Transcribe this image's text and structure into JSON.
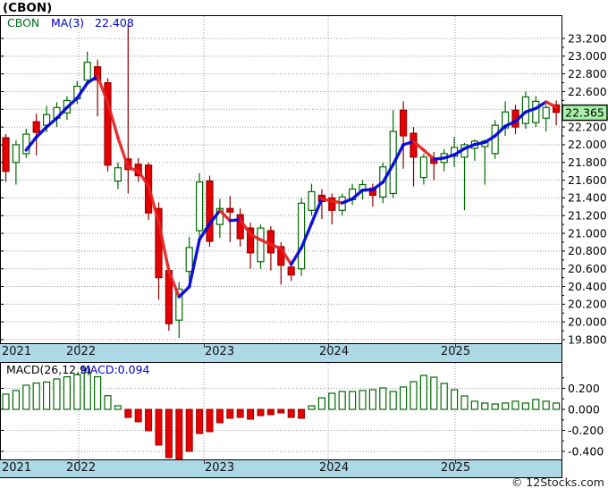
{
  "title": "(CBON)",
  "copyright": "© 12Stocks.com",
  "colors": {
    "up_outline": "#006A00",
    "down_fill": "#E60000",
    "down_edge": "#8B0000",
    "ma_up": "#0000DC",
    "ma_down": "#E62222",
    "grid": "#999999",
    "band_bg": "#ADD8E6",
    "marker_bg": "#A8F0A8",
    "legend_symbol": "#007020",
    "legend_value": "#0000C8"
  },
  "chart_data": [
    {
      "type": "candlestick",
      "title": "(CBON)",
      "legend": {
        "symbol": "CBON",
        "ma_label": "MA(3)",
        "ma_value": "22.408"
      },
      "last_price": 22.365,
      "last_price_label": "22.365",
      "y_axis": {
        "min": 19.8,
        "max": 23.2,
        "tick_step": 0.2,
        "labels": [
          "23.200",
          "23.000",
          "22.800",
          "22.600",
          "22.400",
          "22.200",
          "22.000",
          "21.800",
          "21.600",
          "21.400",
          "21.200",
          "21.000",
          "20.800",
          "20.600",
          "20.400",
          "20.200",
          "20.000",
          "19.800"
        ]
      },
      "x_axis": {
        "year_labels": [
          "2021",
          "2022",
          "2023",
          "2024",
          "2025"
        ]
      },
      "layout": {
        "year_label_x": [
          2,
          74,
          229,
          357,
          493
        ],
        "year_grid_x": [
          88,
          228,
          367,
          509
        ],
        "grid_on": true,
        "legend_position": "top-left"
      },
      "ohlc": [
        [
          22.08,
          22.12,
          21.58,
          21.7
        ],
        [
          21.8,
          22.05,
          21.55,
          22.0
        ],
        [
          21.9,
          22.18,
          21.85,
          22.12
        ],
        [
          22.26,
          22.35,
          21.88,
          22.14
        ],
        [
          22.22,
          22.44,
          22.14,
          22.34
        ],
        [
          22.3,
          22.48,
          22.2,
          22.42
        ],
        [
          22.36,
          22.55,
          22.28,
          22.5
        ],
        [
          22.52,
          22.72,
          22.46,
          22.66
        ],
        [
          22.73,
          23.05,
          22.68,
          22.93
        ],
        [
          22.88,
          22.96,
          22.32,
          22.73
        ],
        [
          22.7,
          22.75,
          21.7,
          21.77
        ],
        [
          21.59,
          21.8,
          21.5,
          21.74
        ],
        [
          21.84,
          23.35,
          21.45,
          21.72
        ],
        [
          21.78,
          21.85,
          21.58,
          21.65
        ],
        [
          21.77,
          21.8,
          21.15,
          21.23
        ],
        [
          21.28,
          21.35,
          20.25,
          20.5
        ],
        [
          20.58,
          20.65,
          19.9,
          19.98
        ],
        [
          20.02,
          20.45,
          19.82,
          20.37
        ],
        [
          20.57,
          20.96,
          20.45,
          20.84
        ],
        [
          21.03,
          21.68,
          20.95,
          21.58
        ],
        [
          21.59,
          21.65,
          20.85,
          20.91
        ],
        [
          21.1,
          21.39,
          20.95,
          21.28
        ],
        [
          21.28,
          21.42,
          20.9,
          21.24
        ],
        [
          21.21,
          21.28,
          20.85,
          20.94
        ],
        [
          21.06,
          21.12,
          20.6,
          20.78
        ],
        [
          20.68,
          21.1,
          20.6,
          21.06
        ],
        [
          21.03,
          21.08,
          20.58,
          20.78
        ],
        [
          20.85,
          20.9,
          20.42,
          20.64
        ],
        [
          20.62,
          20.68,
          20.46,
          20.53
        ],
        [
          20.6,
          21.4,
          20.52,
          21.34
        ],
        [
          21.26,
          21.56,
          21.2,
          21.47
        ],
        [
          21.43,
          21.5,
          21.16,
          21.36
        ],
        [
          21.4,
          21.45,
          21.1,
          21.26
        ],
        [
          21.26,
          21.45,
          21.2,
          21.41
        ],
        [
          21.38,
          21.56,
          21.32,
          21.5
        ],
        [
          21.48,
          21.6,
          21.38,
          21.55
        ],
        [
          21.51,
          21.56,
          21.3,
          21.43
        ],
        [
          21.41,
          21.8,
          21.34,
          21.75
        ],
        [
          21.45,
          22.39,
          21.4,
          22.15
        ],
        [
          22.39,
          22.49,
          21.73,
          22.1
        ],
        [
          22.13,
          22.2,
          21.53,
          21.86
        ],
        [
          21.63,
          21.9,
          21.55,
          21.86
        ],
        [
          21.85,
          21.92,
          21.6,
          21.79
        ],
        [
          21.8,
          21.95,
          21.7,
          21.9
        ],
        [
          21.87,
          22.09,
          21.75,
          21.97
        ],
        [
          21.86,
          22.02,
          21.26,
          22.0
        ],
        [
          21.96,
          22.06,
          21.82,
          22.04
        ],
        [
          21.98,
          22.06,
          21.55,
          22.04
        ],
        [
          21.9,
          22.28,
          21.84,
          22.22
        ],
        [
          22.19,
          22.49,
          22.1,
          22.37
        ],
        [
          22.39,
          22.45,
          22.12,
          22.2
        ],
        [
          22.24,
          22.6,
          22.18,
          22.54
        ],
        [
          22.25,
          22.55,
          22.2,
          22.49
        ],
        [
          22.3,
          22.45,
          22.15,
          22.42
        ],
        [
          22.45,
          22.5,
          22.22,
          22.365
        ]
      ]
    },
    {
      "type": "bar",
      "title": "MACD histogram",
      "legend": {
        "label": "MACD(26,12,9)",
        "value": "MACD:0.094"
      },
      "y_axis": {
        "min": -0.5,
        "max": 0.4,
        "tick_step": 0.2,
        "labels": [
          "0.200",
          "0.000",
          "-0.200",
          "-0.400"
        ],
        "label_values": [
          0.2,
          0.0,
          -0.2,
          -0.4
        ]
      },
      "values": [
        0.145,
        0.18,
        0.23,
        0.25,
        0.26,
        0.29,
        0.31,
        0.33,
        0.35,
        0.31,
        0.13,
        0.034,
        -0.077,
        -0.119,
        -0.204,
        -0.34,
        -0.46,
        -0.475,
        -0.4,
        -0.23,
        -0.213,
        -0.128,
        -0.085,
        -0.077,
        -0.094,
        -0.06,
        -0.051,
        -0.034,
        -0.077,
        -0.085,
        0.034,
        0.11,
        0.153,
        0.17,
        0.17,
        0.18,
        0.187,
        0.204,
        0.17,
        0.213,
        0.264,
        0.323,
        0.306,
        0.247,
        0.187,
        0.128,
        0.077,
        0.06,
        0.051,
        0.06,
        0.077,
        0.06,
        0.094,
        0.077,
        0.06
      ],
      "current_value": 0.094
    }
  ]
}
